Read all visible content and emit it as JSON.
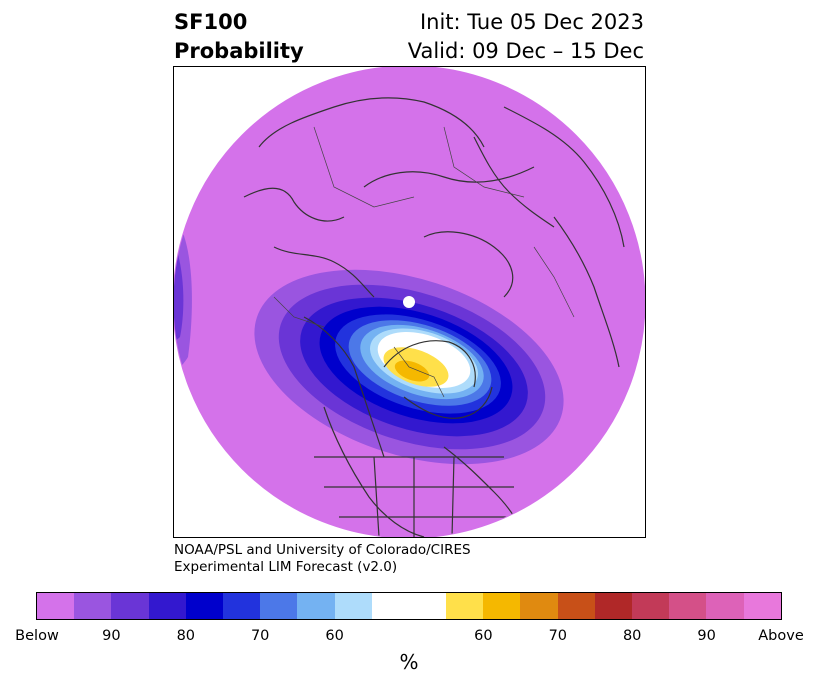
{
  "title": {
    "left_line1": "SF100",
    "left_line2": "Probability",
    "right_line1": "Init: Tue 05 Dec 2023",
    "right_line2": "Valid: 09 Dec – 15 Dec"
  },
  "credit": {
    "line1": "NOAA/PSL and University of Colorado/CIRES",
    "line2": "Experimental LIM Forecast (v2.0)"
  },
  "colorbar": {
    "unit": "%",
    "ticks": [
      "Below",
      "90",
      "80",
      "70",
      "60",
      "60",
      "70",
      "80",
      "90",
      "Above"
    ],
    "colors": [
      "#d472ea",
      "#9a55e0",
      "#6a35d6",
      "#3318cf",
      "#0000cc",
      "#2233dd",
      "#4c78e8",
      "#74b2f2",
      "#aedcfb",
      "#ffffff",
      "#ffe04a",
      "#f5b800",
      "#e08a10",
      "#c85018",
      "#b02828",
      "#c23a58",
      "#d45088",
      "#dd62b8",
      "#e878dc"
    ]
  },
  "map": {
    "background_color": "#d472ea",
    "anomaly_colors": [
      "#9a55e0",
      "#6a35d6",
      "#3318cf",
      "#0000cc",
      "#2233dd",
      "#4c78e8",
      "#74b2f2",
      "#aedcfb",
      "#ffffff",
      "#ffe04a",
      "#f5b800"
    ]
  }
}
